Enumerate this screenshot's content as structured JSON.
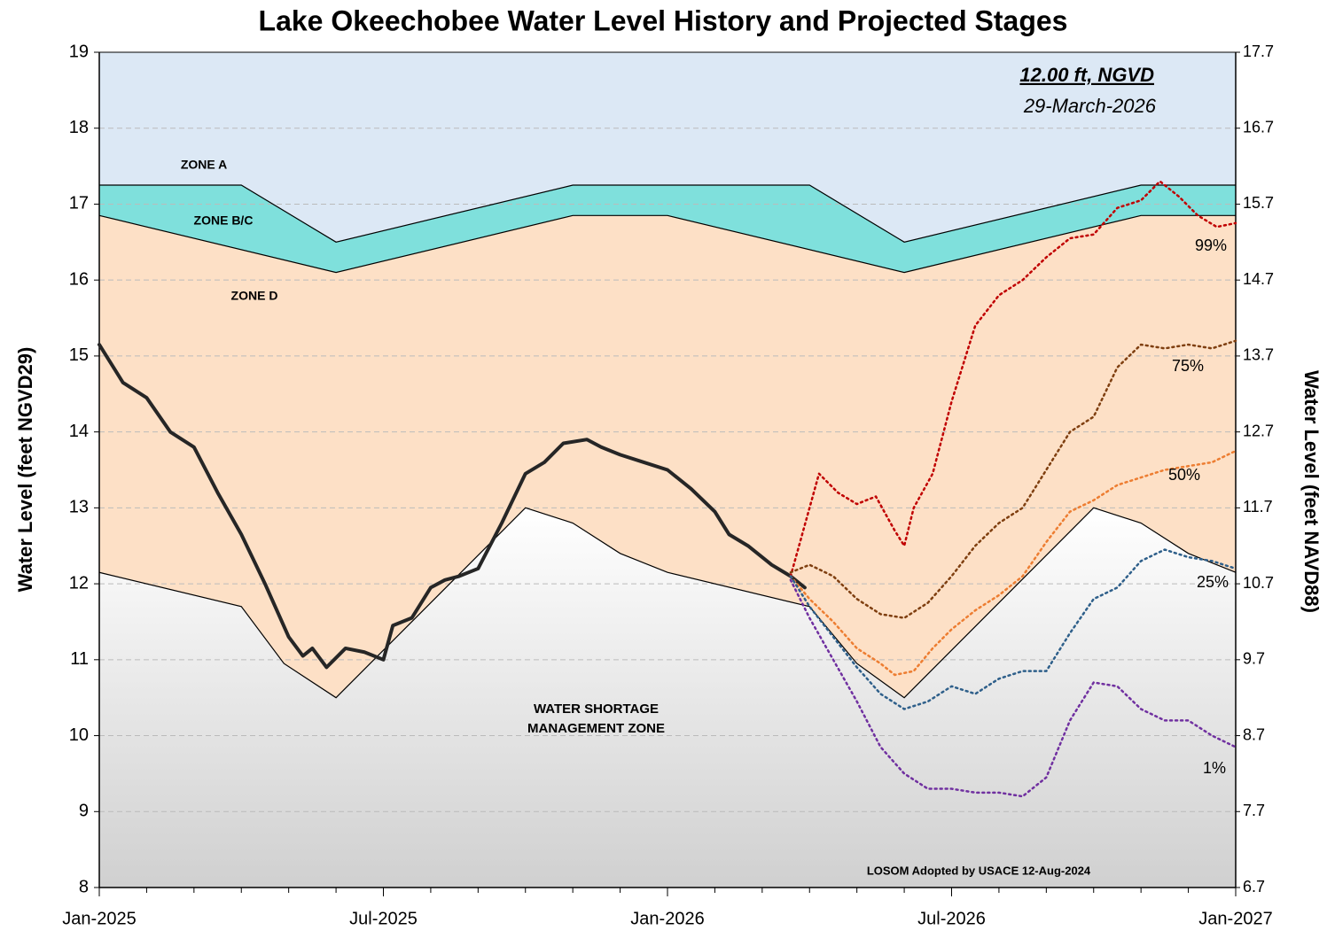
{
  "chart_data": {
    "type": "line",
    "title": "Lake Okeechobee Water Level History and Projected Stages",
    "y_label": "Water Level (feet NGVD29)",
    "y2_label": "Water Level (feet NAVD88)",
    "xlim": [
      0,
      24
    ],
    "xticks": [
      {
        "value": 0,
        "label": "Jan-2025"
      },
      {
        "value": 6,
        "label": "Jul-2025"
      },
      {
        "value": 12,
        "label": "Jan-2026"
      },
      {
        "value": 18,
        "label": "Jul-2026"
      },
      {
        "value": 24,
        "label": "Jan-2027"
      }
    ],
    "xminorticks": [
      1,
      2,
      3,
      4,
      5,
      7,
      8,
      9,
      10,
      11,
      13,
      14,
      15,
      16,
      17,
      19,
      20,
      21,
      22,
      23
    ],
    "ylim": [
      8,
      19
    ],
    "yticks": [
      8,
      9,
      10,
      11,
      12,
      13,
      14,
      15,
      16,
      17,
      18,
      19
    ],
    "y2lim": [
      6.7,
      17.7
    ],
    "y2ticks": [
      6.7,
      7.7,
      8.7,
      9.7,
      10.7,
      11.7,
      12.7,
      13.7,
      14.7,
      15.7,
      16.7,
      17.7
    ],
    "grid": true,
    "zones": [
      {
        "name": "ZONE A",
        "color": "#dce8f5"
      },
      {
        "name": "ZONE B/C",
        "color": "#7fe0dc"
      },
      {
        "name": "ZONE D",
        "color": "#fde0c6"
      },
      {
        "name": "WATER SHORTAGE MANAGEMENT ZONE",
        "color": "#d4d4d4"
      }
    ],
    "zone_boundaries": [
      {
        "x": [
          0,
          3,
          5,
          10,
          15,
          17,
          22,
          24
        ],
        "values": [
          17.25,
          17.25,
          16.5,
          17.25,
          17.25,
          16.5,
          17.25,
          17.25
        ]
      },
      {
        "x": [
          0,
          5,
          10,
          12,
          17,
          22,
          24
        ],
        "values": [
          16.85,
          16.1,
          16.85,
          16.85,
          16.1,
          16.85,
          16.85
        ]
      },
      {
        "x": [
          0,
          3,
          3.9,
          5,
          9,
          10,
          11,
          12,
          15,
          16,
          17,
          21,
          22,
          23,
          24
        ],
        "values": [
          12.15,
          11.7,
          10.95,
          10.5,
          13.0,
          12.8,
          12.4,
          12.15,
          11.7,
          10.95,
          10.5,
          13.0,
          12.8,
          12.4,
          12.15
        ]
      }
    ],
    "series": [
      {
        "color": "#262626",
        "x": [
          0,
          0.5,
          1,
          1.5,
          2,
          2.5,
          3,
          3.5,
          4,
          4.3,
          4.5,
          4.8,
          5.2,
          5.6,
          6,
          6.2,
          6.6,
          7,
          7.3,
          7.6,
          8,
          8.5,
          9,
          9.4,
          9.8,
          10.3,
          10.6,
          11,
          11.5,
          12,
          12.5,
          13,
          13.3,
          13.7,
          14.2,
          14.6,
          14.9
        ],
        "values": [
          15.15,
          14.65,
          14.45,
          14.0,
          13.8,
          13.2,
          12.65,
          12.0,
          11.3,
          11.05,
          11.15,
          10.9,
          11.15,
          11.1,
          11.0,
          11.45,
          11.55,
          11.95,
          12.05,
          12.1,
          12.2,
          12.8,
          13.45,
          13.6,
          13.85,
          13.9,
          13.8,
          13.7,
          13.6,
          13.5,
          13.25,
          12.95,
          12.65,
          12.5,
          12.25,
          12.1,
          11.95
        ]
      },
      {
        "name": "99%",
        "color": "#c00000",
        "x": [
          14.6,
          15,
          15.2,
          15.6,
          16,
          16.4,
          16.8,
          17,
          17.2,
          17.6,
          18,
          18.5,
          19,
          19.5,
          20,
          20.5,
          21,
          21.5,
          22,
          22.4,
          22.8,
          23.2,
          23.6,
          24
        ],
        "values": [
          12.1,
          13.0,
          13.45,
          13.2,
          13.05,
          13.15,
          12.7,
          12.5,
          13.0,
          13.45,
          14.4,
          15.4,
          15.8,
          16.0,
          16.3,
          16.55,
          16.6,
          16.95,
          17.05,
          17.3,
          17.1,
          16.85,
          16.7,
          16.75
        ]
      },
      {
        "name": "75%",
        "color": "#7f3f10",
        "x": [
          14.6,
          15,
          15.5,
          16,
          16.5,
          17,
          17.5,
          18,
          18.5,
          19,
          19.5,
          20,
          20.5,
          21,
          21.5,
          22,
          22.5,
          23,
          23.5,
          24
        ],
        "values": [
          12.15,
          12.25,
          12.1,
          11.8,
          11.6,
          11.55,
          11.75,
          12.1,
          12.5,
          12.8,
          13.0,
          13.5,
          14.0,
          14.2,
          14.85,
          15.15,
          15.1,
          15.15,
          15.1,
          15.2
        ]
      },
      {
        "name": "50%",
        "color": "#ed7d31",
        "x": [
          14.6,
          15,
          15.5,
          16,
          16.5,
          16.8,
          17.2,
          17.6,
          18,
          18.5,
          19,
          19.5,
          20,
          20.5,
          21,
          21.5,
          22,
          22.5,
          23,
          23.5,
          24
        ],
        "values": [
          12.1,
          11.8,
          11.5,
          11.15,
          10.95,
          10.8,
          10.85,
          11.15,
          11.4,
          11.65,
          11.85,
          12.1,
          12.55,
          12.95,
          13.1,
          13.3,
          13.4,
          13.5,
          13.55,
          13.6,
          13.75
        ]
      },
      {
        "name": "25%",
        "color": "#2e5f8a",
        "x": [
          14.6,
          15,
          15.5,
          16,
          16.5,
          17,
          17.5,
          18,
          18.5,
          19,
          19.5,
          20,
          20.5,
          21,
          21.5,
          22,
          22.5,
          23,
          23.5,
          24
        ],
        "values": [
          12.1,
          11.7,
          11.3,
          10.9,
          10.55,
          10.35,
          10.45,
          10.65,
          10.55,
          10.75,
          10.85,
          10.85,
          11.35,
          11.8,
          11.95,
          12.3,
          12.45,
          12.35,
          12.3,
          12.2
        ]
      },
      {
        "name": "1%",
        "color": "#7030a0",
        "x": [
          14.6,
          15,
          15.5,
          16,
          16.5,
          17,
          17.5,
          18,
          18.5,
          19,
          19.5,
          20,
          20.5,
          21,
          21.5,
          22,
          22.5,
          23,
          23.5,
          24
        ],
        "values": [
          12.05,
          11.55,
          11.0,
          10.45,
          9.85,
          9.5,
          9.3,
          9.3,
          9.25,
          9.25,
          9.2,
          9.45,
          10.2,
          10.7,
          10.65,
          10.35,
          10.2,
          10.2,
          10.0,
          9.85
        ]
      }
    ],
    "stage": "12.00 ft, NGVD",
    "stage_date": "29-March-2026",
    "note": "LOSOM Adopted by USACE 12-Aug-2024"
  }
}
